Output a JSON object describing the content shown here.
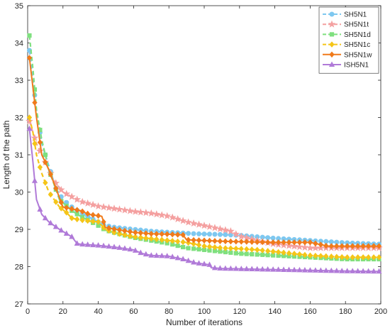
{
  "chart_data": {
    "type": "line",
    "title": "",
    "xlabel": "Number of iterations",
    "ylabel": "Length of the path",
    "xlim": [
      0,
      200
    ],
    "ylim": [
      27,
      35
    ],
    "xticks": [
      0,
      20,
      40,
      60,
      80,
      100,
      120,
      140,
      160,
      180,
      200
    ],
    "yticks": [
      27,
      28,
      29,
      30,
      31,
      32,
      33,
      34,
      35
    ],
    "grid": false,
    "legend_position": "top-right",
    "series": [
      {
        "name": "SH5N1",
        "color": "#7ec8f0",
        "line_style": "dashed",
        "marker": "circle",
        "points": [
          [
            1,
            33.8
          ],
          [
            3,
            33.0
          ],
          [
            5,
            32.2
          ],
          [
            8,
            31.3
          ],
          [
            12,
            30.7
          ],
          [
            16,
            30.1
          ],
          [
            20,
            29.8
          ],
          [
            25,
            29.6
          ],
          [
            30,
            29.45
          ],
          [
            40,
            29.2
          ],
          [
            44,
            29.1
          ],
          [
            50,
            29.05
          ],
          [
            60,
            29.0
          ],
          [
            70,
            28.95
          ],
          [
            80,
            28.92
          ],
          [
            88,
            28.9
          ],
          [
            95,
            28.88
          ],
          [
            104,
            28.87
          ],
          [
            110,
            28.86
          ],
          [
            120,
            28.84
          ],
          [
            140,
            28.76
          ],
          [
            160,
            28.7
          ],
          [
            180,
            28.64
          ],
          [
            200,
            28.6
          ]
        ]
      },
      {
        "name": "SH5N1t",
        "color": "#f4a0a0",
        "line_style": "dashed",
        "marker": "star",
        "points": [
          [
            1,
            31.9
          ],
          [
            3,
            31.6
          ],
          [
            5,
            31.3
          ],
          [
            10,
            30.8
          ],
          [
            15,
            30.3
          ],
          [
            20,
            30.0
          ],
          [
            30,
            29.75
          ],
          [
            40,
            29.62
          ],
          [
            50,
            29.55
          ],
          [
            60,
            29.48
          ],
          [
            70,
            29.43
          ],
          [
            80,
            29.35
          ],
          [
            90,
            29.2
          ],
          [
            100,
            29.1
          ],
          [
            110,
            29.0
          ],
          [
            115,
            28.95
          ],
          [
            120,
            28.82
          ],
          [
            130,
            28.7
          ],
          [
            140,
            28.6
          ],
          [
            150,
            28.55
          ],
          [
            160,
            28.5
          ],
          [
            180,
            28.5
          ],
          [
            200,
            28.5
          ]
        ]
      },
      {
        "name": "SH5N1d",
        "color": "#7fe07f",
        "line_style": "dashed",
        "marker": "square",
        "points": [
          [
            1,
            34.2
          ],
          [
            3,
            33.3
          ],
          [
            5,
            32.2
          ],
          [
            8,
            31.4
          ],
          [
            12,
            30.6
          ],
          [
            18,
            29.8
          ],
          [
            25,
            29.5
          ],
          [
            30,
            29.35
          ],
          [
            40,
            29.1
          ],
          [
            44,
            28.98
          ],
          [
            50,
            28.9
          ],
          [
            60,
            28.78
          ],
          [
            70,
            28.7
          ],
          [
            80,
            28.62
          ],
          [
            90,
            28.5
          ],
          [
            100,
            28.45
          ],
          [
            110,
            28.4
          ],
          [
            120,
            28.35
          ],
          [
            140,
            28.3
          ],
          [
            160,
            28.25
          ],
          [
            180,
            28.2
          ],
          [
            200,
            28.2
          ]
        ]
      },
      {
        "name": "SH5N1c",
        "color": "#f5c518",
        "line_style": "dashed",
        "marker": "diamond",
        "points": [
          [
            1,
            32.0
          ],
          [
            3,
            31.6
          ],
          [
            5,
            31.0
          ],
          [
            8,
            30.5
          ],
          [
            12,
            30.0
          ],
          [
            18,
            29.6
          ],
          [
            22,
            29.45
          ],
          [
            25,
            29.3
          ],
          [
            30,
            29.25
          ],
          [
            40,
            29.2
          ],
          [
            44,
            29.0
          ],
          [
            50,
            28.9
          ],
          [
            60,
            28.8
          ],
          [
            70,
            28.75
          ],
          [
            80,
            28.7
          ],
          [
            90,
            28.65
          ],
          [
            100,
            28.55
          ],
          [
            110,
            28.5
          ],
          [
            120,
            28.48
          ],
          [
            130,
            28.45
          ],
          [
            140,
            28.4
          ],
          [
            160,
            28.3
          ],
          [
            180,
            28.25
          ],
          [
            200,
            28.25
          ]
        ]
      },
      {
        "name": "SH5N1w",
        "color": "#f07a1a",
        "line_style": "solid",
        "marker": "diamond",
        "points": [
          [
            1,
            33.6
          ],
          [
            3,
            32.8
          ],
          [
            5,
            32.0
          ],
          [
            8,
            31.0
          ],
          [
            12,
            30.6
          ],
          [
            16,
            30.1
          ],
          [
            20,
            29.6
          ],
          [
            25,
            29.55
          ],
          [
            30,
            29.5
          ],
          [
            35,
            29.4
          ],
          [
            42,
            29.35
          ],
          [
            44,
            29.05
          ],
          [
            50,
            29.0
          ],
          [
            60,
            28.92
          ],
          [
            70,
            28.88
          ],
          [
            80,
            28.87
          ],
          [
            88,
            28.85
          ],
          [
            90,
            28.72
          ],
          [
            100,
            28.7
          ],
          [
            110,
            28.68
          ],
          [
            120,
            28.67
          ],
          [
            130,
            28.66
          ],
          [
            140,
            28.65
          ],
          [
            150,
            28.65
          ],
          [
            160,
            28.65
          ],
          [
            165,
            28.6
          ],
          [
            170,
            28.55
          ],
          [
            180,
            28.55
          ],
          [
            200,
            28.55
          ]
        ]
      },
      {
        "name": "ISH5N1",
        "color": "#b07ad8",
        "line_style": "solid",
        "marker": "triangle",
        "points": [
          [
            1,
            31.7
          ],
          [
            3,
            30.8
          ],
          [
            5,
            29.8
          ],
          [
            8,
            29.4
          ],
          [
            12,
            29.2
          ],
          [
            18,
            29.0
          ],
          [
            25,
            28.8
          ],
          [
            28,
            28.62
          ],
          [
            30,
            28.6
          ],
          [
            40,
            28.57
          ],
          [
            50,
            28.52
          ],
          [
            60,
            28.45
          ],
          [
            65,
            28.35
          ],
          [
            70,
            28.3
          ],
          [
            80,
            28.28
          ],
          [
            88,
            28.2
          ],
          [
            95,
            28.1
          ],
          [
            103,
            28.05
          ],
          [
            104,
            27.97
          ],
          [
            110,
            27.95
          ],
          [
            120,
            27.94
          ],
          [
            140,
            27.92
          ],
          [
            160,
            27.9
          ],
          [
            180,
            27.88
          ],
          [
            200,
            27.87
          ]
        ]
      }
    ]
  }
}
